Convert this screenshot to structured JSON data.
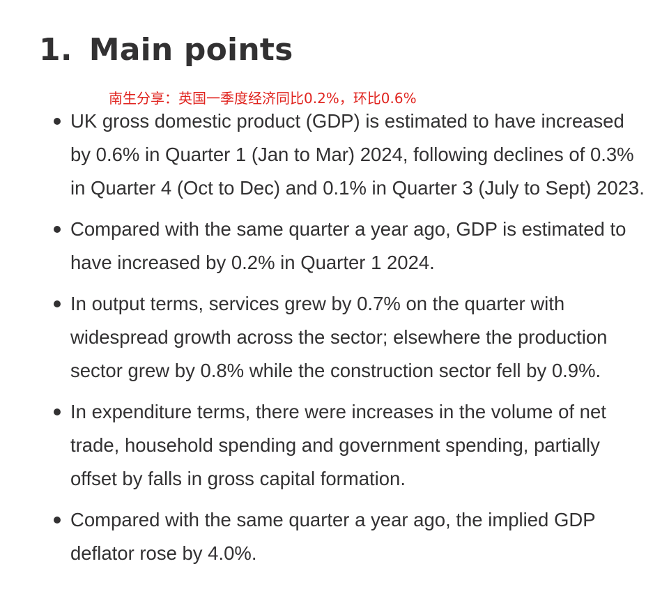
{
  "section": {
    "number": "1.",
    "title": "Main points"
  },
  "annotation": {
    "text": "南生分享：英国一季度经济同比0.2%，环比0.6%",
    "color": "#e0241f"
  },
  "points": [
    {
      "text": "UK gross domestic product (GDP) is estimated to have increased by 0.6% in Quarter 1 (Jan to Mar) 2024, following declines of 0.3% in Quarter 4 (Oct to Dec) and 0.1% in Quarter 3 (July to Sept) 2023."
    },
    {
      "text": "Compared with the same quarter a year ago, GDP is estimated to have increased by 0.2% in Quarter 1 2024."
    },
    {
      "text": "In output terms, services grew by 0.7% on the quarter with widespread growth across the sector; elsewhere the production sector grew by 0.8% while the construction sector fell by 0.9%."
    },
    {
      "text": "In expenditure terms, there were increases in the volume of net trade, household spending and government spending, partially offset by falls in gross capital formation."
    },
    {
      "text": "Compared with the same quarter a year ago, the implied GDP deflator rose by 4.0%."
    }
  ],
  "colors": {
    "text": "#323132",
    "background": "#ffffff"
  }
}
